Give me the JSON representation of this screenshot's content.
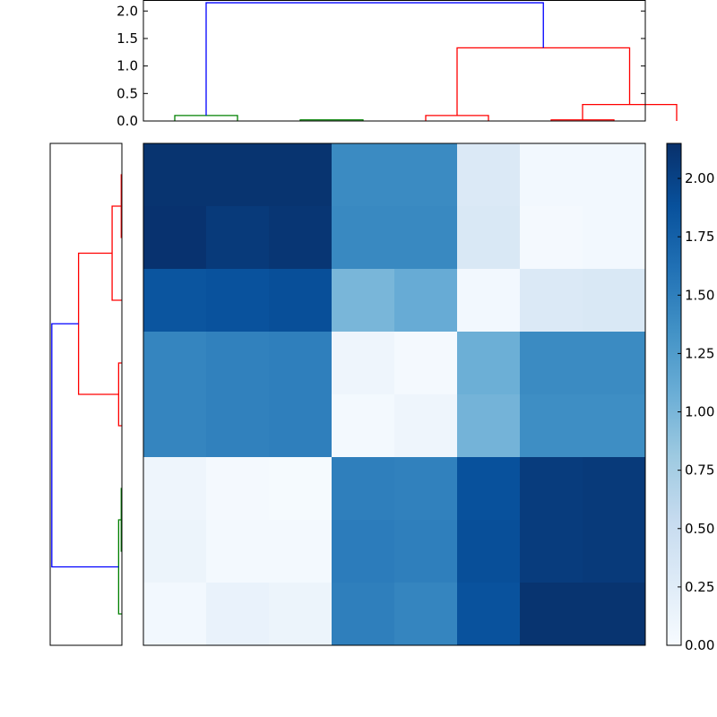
{
  "chart_data": [
    {
      "type": "dendrogram",
      "orientation": "top",
      "ylim": [
        0,
        2.2
      ],
      "yticks": [
        "0.0",
        "0.5",
        "1.0",
        "1.5",
        "2.0"
      ],
      "ytick_values": [
        0,
        0.5,
        1.0,
        1.5,
        2.0
      ],
      "leaf_count": 8,
      "links": [
        {
          "a": 0,
          "b": 1,
          "h": 0.1,
          "color": "#008000"
        },
        {
          "a": 2,
          "b": 3,
          "h": 0.02,
          "color": "#008000"
        },
        {
          "a": 4,
          "b": 5,
          "h": 0.1,
          "color": "#ff0000"
        },
        {
          "a": 6,
          "b": 7,
          "h": 0.02,
          "color": "#ff0000"
        },
        {
          "a": 6.5,
          "b": 8,
          "h": 0.3,
          "color": "#ff0000"
        },
        {
          "a": 4.5,
          "b": 7.25,
          "h": 1.33,
          "color": "#ff0000"
        },
        {
          "a": 0.5,
          "b": 5.875,
          "h": 2.15,
          "color": "#0000ff"
        }
      ]
    },
    {
      "type": "dendrogram",
      "orientation": "left",
      "xlim": [
        0,
        2.2
      ],
      "leaf_count": 8,
      "links": [
        {
          "a": 0,
          "b": 1,
          "h": 0.02,
          "color": "#ff0000"
        },
        {
          "a": 0.5,
          "b": 2,
          "h": 0.3,
          "color": "#ff0000"
        },
        {
          "a": 3,
          "b": 4,
          "h": 0.1,
          "color": "#ff0000"
        },
        {
          "a": 1.25,
          "b": 3.5,
          "h": 1.33,
          "color": "#ff0000"
        },
        {
          "a": 5,
          "b": 6,
          "h": 0.02,
          "color": "#008000"
        },
        {
          "a": 5.5,
          "b": 7,
          "h": 0.1,
          "color": "#008000"
        },
        {
          "a": 2.375,
          "b": 6.25,
          "h": 2.15,
          "color": "#0000ff"
        }
      ]
    },
    {
      "type": "heatmap",
      "colormap": "Blues",
      "vmin": 0,
      "vmax": 2.15,
      "values": [
        [
          2.12,
          2.12,
          2.12,
          1.4,
          1.4,
          0.3,
          0.05,
          0.05
        ],
        [
          2.13,
          2.07,
          2.1,
          1.42,
          1.42,
          0.32,
          0.03,
          0.05
        ],
        [
          1.85,
          1.87,
          1.9,
          1.0,
          1.1,
          0.05,
          0.3,
          0.32
        ],
        [
          1.45,
          1.48,
          1.5,
          0.1,
          0.03,
          1.07,
          1.4,
          1.4
        ],
        [
          1.45,
          1.48,
          1.5,
          0.04,
          0.1,
          1.03,
          1.38,
          1.38
        ],
        [
          0.1,
          0.03,
          0.02,
          1.5,
          1.48,
          1.88,
          2.05,
          2.07
        ],
        [
          0.12,
          0.04,
          0.04,
          1.52,
          1.5,
          1.9,
          2.05,
          2.07
        ],
        [
          0.05,
          0.15,
          0.12,
          1.5,
          1.45,
          1.87,
          2.12,
          2.12
        ]
      ]
    },
    {
      "type": "colorbar",
      "vmin": 0,
      "vmax": 2.15,
      "ticks": [
        "0.00",
        "0.25",
        "0.50",
        "0.75",
        "1.00",
        "1.25",
        "1.50",
        "1.75",
        "2.00"
      ],
      "tick_values": [
        0,
        0.25,
        0.5,
        0.75,
        1.0,
        1.25,
        1.5,
        1.75,
        2.0
      ]
    }
  ]
}
